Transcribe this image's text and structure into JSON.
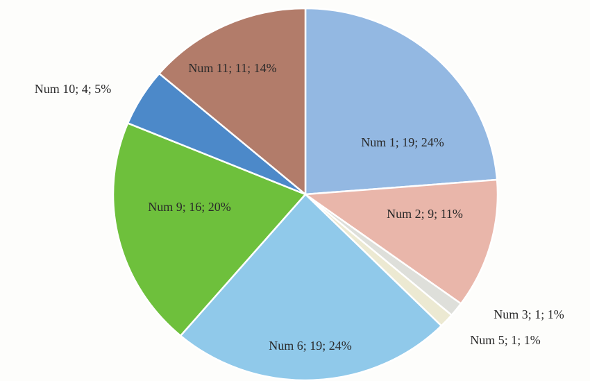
{
  "chart_data": {
    "type": "pie",
    "categories": [
      "Num 1",
      "Num 2",
      "Num 3",
      "Num 5",
      "Num 6",
      "Num 9",
      "Num 10",
      "Num 11"
    ],
    "values": [
      19,
      9,
      1,
      1,
      19,
      16,
      4,
      11
    ],
    "labels": [
      "Num 1; 19; 24%",
      "Num 2; 9; 11%",
      "Num 3; 1; 1%",
      "Num 5; 1; 1%",
      "Num 6; 19; 24%",
      "Num 9; 16; 20%",
      "Num 10; 4; 5%",
      "Num 11; 11; 14%"
    ],
    "colors": [
      "#93b8e2",
      "#e9b6aa",
      "#dedfda",
      "#ece9d2",
      "#90c9ea",
      "#6ec03c",
      "#4c89c9",
      "#b27c6a"
    ]
  }
}
